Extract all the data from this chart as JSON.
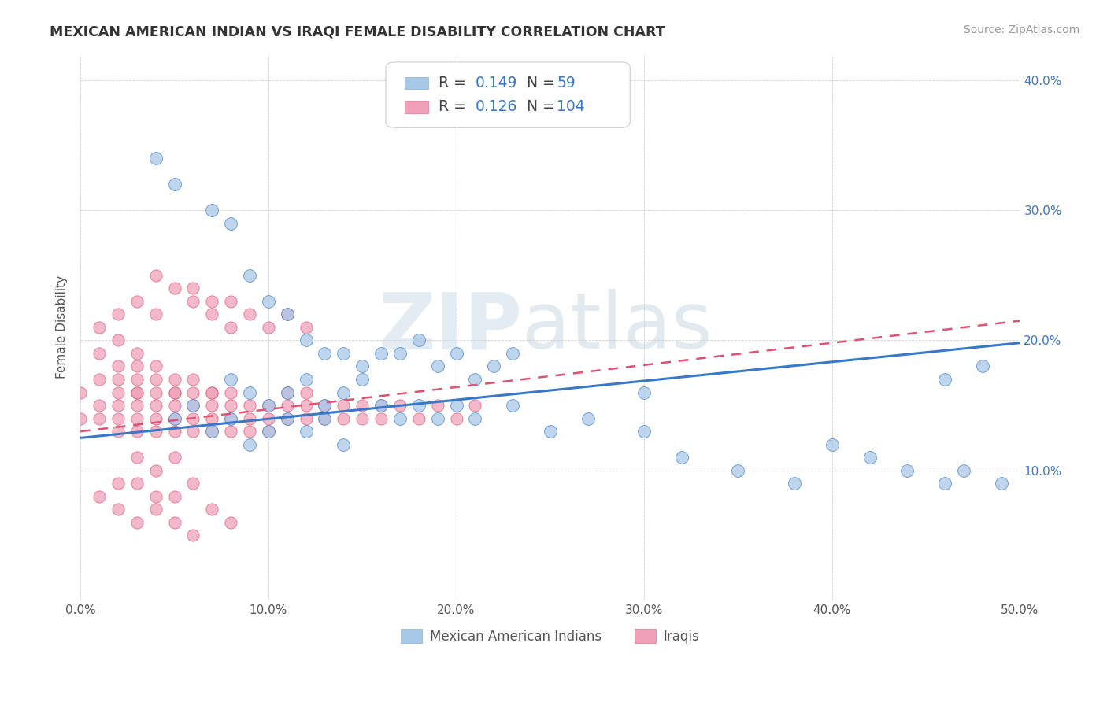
{
  "title": "MEXICAN AMERICAN INDIAN VS IRAQI FEMALE DISABILITY CORRELATION CHART",
  "source": "Source: ZipAtlas.com",
  "ylabel": "Female Disability",
  "watermark": "ZIPatlas",
  "color_blue": "#a8c8e8",
  "color_pink": "#f0a0b8",
  "line_blue": "#3878c8",
  "line_pink": "#e05070",
  "xlim": [
    0.0,
    0.5
  ],
  "ylim": [
    0.0,
    0.42
  ],
  "xticks": [
    0.0,
    0.1,
    0.2,
    0.3,
    0.4,
    0.5
  ],
  "yticks": [
    0.0,
    0.1,
    0.2,
    0.3,
    0.4
  ],
  "ytick_labels_right": [
    "",
    "10.0%",
    "20.0%",
    "30.0%",
    "40.0%"
  ],
  "xtick_labels": [
    "0.0%",
    "10.0%",
    "20.0%",
    "30.0%",
    "40.0%",
    "50.0%"
  ],
  "blue_trend": [
    0.125,
    0.198
  ],
  "pink_trend": [
    0.13,
    0.215
  ],
  "blue_scatter_x": [
    0.04,
    0.05,
    0.07,
    0.08,
    0.09,
    0.1,
    0.11,
    0.12,
    0.13,
    0.14,
    0.15,
    0.16,
    0.17,
    0.18,
    0.19,
    0.2,
    0.21,
    0.22,
    0.23,
    0.08,
    0.09,
    0.1,
    0.11,
    0.12,
    0.13,
    0.14,
    0.15,
    0.16,
    0.17,
    0.18,
    0.19,
    0.2,
    0.21,
    0.23,
    0.25,
    0.27,
    0.3,
    0.32,
    0.35,
    0.38,
    0.4,
    0.42,
    0.44,
    0.46,
    0.48,
    0.05,
    0.06,
    0.07,
    0.08,
    0.09,
    0.1,
    0.11,
    0.12,
    0.13,
    0.14,
    0.3,
    0.46,
    0.47,
    0.49
  ],
  "blue_scatter_y": [
    0.34,
    0.32,
    0.3,
    0.29,
    0.25,
    0.23,
    0.22,
    0.2,
    0.19,
    0.19,
    0.18,
    0.19,
    0.19,
    0.2,
    0.18,
    0.19,
    0.17,
    0.18,
    0.19,
    0.17,
    0.16,
    0.15,
    0.16,
    0.17,
    0.15,
    0.16,
    0.17,
    0.15,
    0.14,
    0.15,
    0.14,
    0.15,
    0.14,
    0.15,
    0.13,
    0.14,
    0.13,
    0.11,
    0.1,
    0.09,
    0.12,
    0.11,
    0.1,
    0.09,
    0.18,
    0.14,
    0.15,
    0.13,
    0.14,
    0.12,
    0.13,
    0.14,
    0.13,
    0.14,
    0.12,
    0.16,
    0.17,
    0.1,
    0.09
  ],
  "pink_scatter_x": [
    0.0,
    0.0,
    0.01,
    0.01,
    0.01,
    0.01,
    0.01,
    0.02,
    0.02,
    0.02,
    0.02,
    0.02,
    0.02,
    0.02,
    0.03,
    0.03,
    0.03,
    0.03,
    0.03,
    0.03,
    0.03,
    0.03,
    0.04,
    0.04,
    0.04,
    0.04,
    0.04,
    0.04,
    0.05,
    0.05,
    0.05,
    0.05,
    0.05,
    0.05,
    0.06,
    0.06,
    0.06,
    0.06,
    0.06,
    0.07,
    0.07,
    0.07,
    0.07,
    0.07,
    0.08,
    0.08,
    0.08,
    0.08,
    0.09,
    0.09,
    0.09,
    0.1,
    0.1,
    0.1,
    0.11,
    0.11,
    0.11,
    0.12,
    0.12,
    0.12,
    0.13,
    0.13,
    0.14,
    0.14,
    0.15,
    0.15,
    0.16,
    0.16,
    0.17,
    0.18,
    0.19,
    0.2,
    0.21,
    0.02,
    0.03,
    0.04,
    0.05,
    0.06,
    0.03,
    0.04,
    0.05,
    0.01,
    0.02,
    0.03,
    0.04,
    0.05,
    0.06,
    0.07,
    0.08,
    0.02,
    0.03,
    0.04,
    0.06,
    0.07,
    0.08,
    0.09,
    0.1,
    0.11,
    0.12,
    0.04,
    0.05,
    0.06,
    0.07,
    0.08
  ],
  "pink_scatter_y": [
    0.14,
    0.16,
    0.21,
    0.19,
    0.17,
    0.15,
    0.14,
    0.2,
    0.18,
    0.17,
    0.15,
    0.14,
    0.16,
    0.13,
    0.19,
    0.17,
    0.16,
    0.15,
    0.14,
    0.13,
    0.16,
    0.18,
    0.18,
    0.17,
    0.15,
    0.14,
    0.16,
    0.13,
    0.17,
    0.16,
    0.15,
    0.14,
    0.13,
    0.16,
    0.17,
    0.15,
    0.14,
    0.16,
    0.13,
    0.16,
    0.15,
    0.14,
    0.13,
    0.16,
    0.15,
    0.14,
    0.13,
    0.16,
    0.15,
    0.14,
    0.13,
    0.15,
    0.14,
    0.13,
    0.15,
    0.14,
    0.16,
    0.15,
    0.14,
    0.16,
    0.15,
    0.14,
    0.15,
    0.14,
    0.15,
    0.14,
    0.15,
    0.14,
    0.15,
    0.14,
    0.15,
    0.14,
    0.15,
    0.09,
    0.09,
    0.08,
    0.08,
    0.09,
    0.11,
    0.1,
    0.11,
    0.08,
    0.07,
    0.06,
    0.07,
    0.06,
    0.05,
    0.07,
    0.06,
    0.22,
    0.23,
    0.22,
    0.23,
    0.22,
    0.21,
    0.22,
    0.21,
    0.22,
    0.21,
    0.25,
    0.24,
    0.24,
    0.23,
    0.23
  ]
}
